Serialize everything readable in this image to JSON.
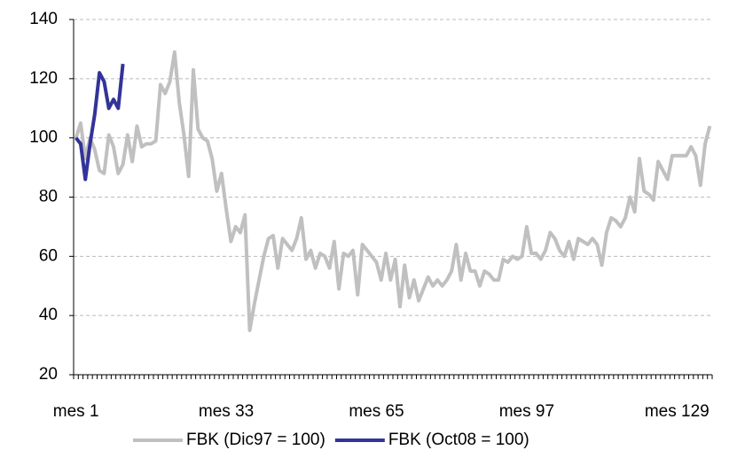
{
  "chart_data": {
    "type": "line",
    "categories": [
      "mes 1",
      null,
      null,
      null,
      null,
      null,
      null,
      null,
      null,
      null,
      null,
      null,
      null,
      null,
      null,
      null,
      null,
      null,
      null,
      null,
      null,
      null,
      null,
      null,
      null,
      null,
      null,
      null,
      null,
      null,
      null,
      null,
      "mes 33",
      null,
      null,
      null,
      null,
      null,
      null,
      null,
      null,
      null,
      null,
      null,
      null,
      null,
      null,
      null,
      null,
      null,
      null,
      null,
      null,
      null,
      null,
      null,
      null,
      null,
      null,
      null,
      null,
      null,
      null,
      null,
      "mes 65",
      null,
      null,
      null,
      null,
      null,
      null,
      null,
      null,
      null,
      null,
      null,
      null,
      null,
      null,
      null,
      null,
      null,
      null,
      null,
      null,
      null,
      null,
      null,
      null,
      null,
      null,
      null,
      null,
      null,
      null,
      null,
      "mes 97",
      null,
      null,
      null,
      null,
      null,
      null,
      null,
      null,
      null,
      null,
      null,
      null,
      null,
      null,
      null,
      null,
      null,
      null,
      null,
      null,
      null,
      null,
      null,
      null,
      null,
      null,
      null,
      null,
      null,
      null,
      null,
      "mes 129",
      null,
      null,
      null,
      null,
      null,
      null,
      null
    ],
    "series": [
      {
        "name": "FBK (Dic97 = 100)",
        "color": "#c0c0c0",
        "values": [
          100,
          105,
          93,
          100,
          96,
          89,
          88,
          101,
          97,
          88,
          91,
          101,
          92,
          104,
          97,
          98,
          98,
          99,
          118,
          115,
          119,
          129,
          112,
          101,
          87,
          123,
          103,
          100,
          99,
          93,
          82,
          88,
          76,
          65,
          70,
          68,
          74,
          35,
          44,
          52,
          60,
          66,
          67,
          56,
          66,
          64,
          62,
          66,
          73,
          59,
          62,
          56,
          61,
          60,
          56,
          65,
          49,
          61,
          60,
          62,
          47,
          64,
          62,
          60,
          58,
          52,
          61,
          52,
          59,
          43,
          57,
          46,
          52,
          45,
          49,
          53,
          50,
          52,
          50,
          52,
          55,
          64,
          52,
          61,
          55,
          55,
          50,
          55,
          54,
          52,
          52,
          59,
          58,
          60,
          59,
          60,
          70,
          61,
          61,
          59,
          62,
          68,
          66,
          62,
          60,
          65,
          59,
          66,
          65,
          64,
          66,
          64,
          57,
          68,
          73,
          72,
          70,
          73,
          80,
          75,
          93,
          82,
          81,
          79,
          92,
          89,
          86,
          94,
          94,
          94,
          94,
          97,
          94,
          84,
          98,
          104
        ]
      },
      {
        "name": "FBK (Oct08 = 100)",
        "color": "#333399",
        "values": [
          100,
          98,
          86,
          98,
          108,
          122,
          119,
          110,
          113,
          110,
          125,
          null,
          null,
          null,
          null,
          null,
          null,
          null,
          null,
          null,
          null,
          null,
          null,
          null,
          null,
          null,
          null,
          null,
          null,
          null,
          null,
          null,
          null,
          null,
          null,
          null,
          null,
          null,
          null,
          null,
          null,
          null,
          null,
          null,
          null,
          null,
          null,
          null,
          null,
          null,
          null,
          null,
          null,
          null,
          null,
          null,
          null,
          null,
          null,
          null,
          null,
          null,
          null,
          null,
          null,
          null,
          null,
          null,
          null,
          null,
          null,
          null,
          null,
          null,
          null,
          null,
          null,
          null,
          null,
          null,
          null,
          null,
          null,
          null,
          null,
          null,
          null,
          null,
          null,
          null,
          null,
          null,
          null,
          null,
          null,
          null,
          null,
          null,
          null,
          null,
          null,
          null,
          null,
          null,
          null,
          null,
          null,
          null,
          null,
          null,
          null,
          null,
          null,
          null,
          null,
          null,
          null,
          null,
          null,
          null,
          null,
          null,
          null,
          null,
          null,
          null,
          null,
          null,
          null,
          null,
          null,
          null,
          null,
          null,
          null,
          null
        ]
      }
    ],
    "ylim": [
      20,
      140
    ],
    "yticks": [
      20,
      40,
      60,
      80,
      100,
      120,
      140
    ],
    "grid": true
  }
}
